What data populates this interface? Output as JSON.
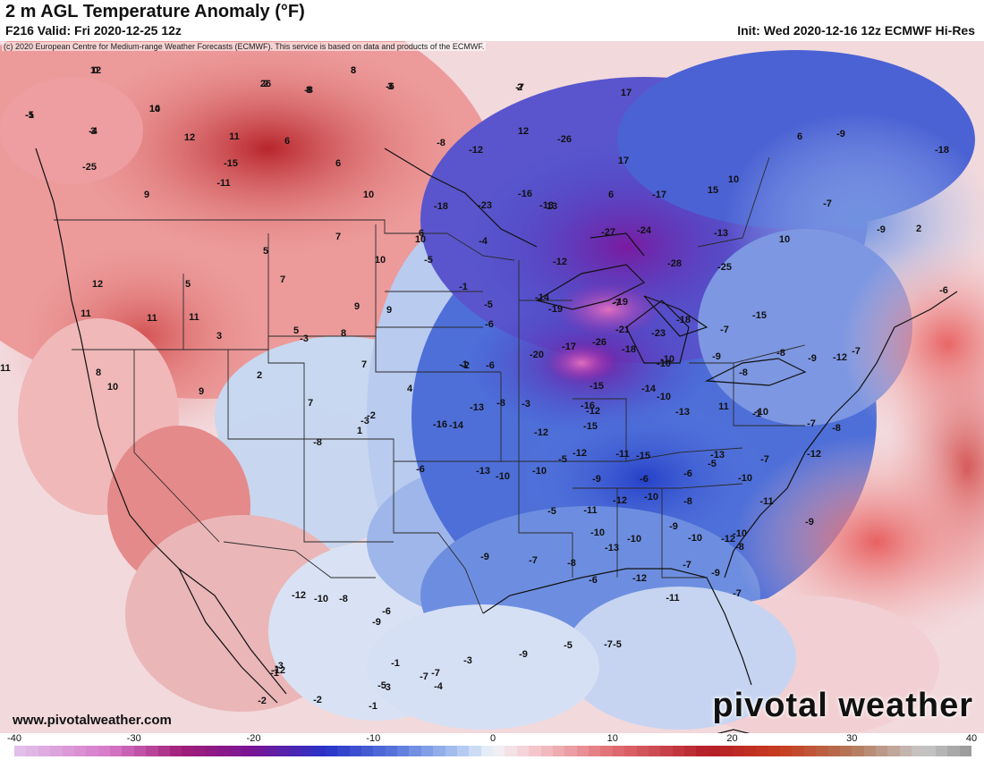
{
  "header": {
    "title": "2 m AGL Temperature Anomaly (°F)",
    "valid": "F216 Valid: Fri 2020-12-25 12z",
    "init": "Init: Wed 2020-12-16 12z ECMWF Hi-Res",
    "credit": "(c) 2020 European Centre for Medium-range Weather Forecasts (ECMWF). This service is based on data and products of the ECMWF."
  },
  "footer": {
    "site": "www.pivotalweather.com",
    "logo": "pivotal weather"
  },
  "legend": {
    "ticks": [
      "-40",
      "-30",
      "-20",
      "-10",
      "0",
      "10",
      "20",
      "30",
      "40"
    ],
    "min": -40,
    "max": 40
  },
  "map_values": [
    "12",
    "8",
    "26",
    "8",
    "3",
    "2",
    "14",
    "-1",
    "3",
    "12",
    "11",
    "6",
    "17",
    "12",
    "-26",
    "-8",
    "-16",
    "6",
    "-9",
    "-12",
    "-15",
    "6",
    "17",
    "10",
    "-18",
    "-25",
    "-11",
    "10",
    "9",
    "13",
    "15",
    "-7",
    "-18",
    "-23",
    "-13",
    "6",
    "-17",
    "-13",
    "10",
    "6",
    "10",
    "-4",
    "-24",
    "-9",
    "2",
    "-27",
    "-12",
    "-28",
    "5",
    "7",
    "10",
    "-5",
    "-25",
    "-6",
    "12",
    "5",
    "7",
    "-1",
    "-14",
    "-7",
    "-5",
    "11",
    "11",
    "11",
    "9",
    "9",
    "8",
    "-19",
    "-19",
    "3",
    "-3",
    "-21",
    "-23",
    "-18",
    "-15",
    "-6",
    "-1",
    "8",
    "10",
    "-6",
    "-17",
    "-26",
    "-10",
    "-7",
    "5",
    "11",
    "2",
    "7",
    "-20",
    "-2",
    "-8",
    "-18",
    "-10",
    "-9",
    "-8",
    "-9",
    "-12",
    "-7",
    "1",
    "4",
    "-16",
    "-15",
    "-14",
    "-10",
    "-8",
    "9",
    "7",
    "-8",
    "-15",
    "-3",
    "-13",
    "-12",
    "-13",
    "11",
    "-1",
    "-10",
    "-2",
    "-3",
    "-12",
    "-14",
    "-16",
    "-12",
    "-11",
    "-15",
    "-13",
    "-10",
    "-7",
    "-8",
    "-13",
    "-10",
    "-5",
    "-9",
    "-6",
    "-5",
    "-6",
    "-7",
    "-12",
    "-6",
    "-10",
    "-5",
    "-11",
    "-12",
    "-10",
    "-8",
    "-11",
    "-9",
    "-10",
    "-10",
    "-13",
    "-10",
    "-9",
    "-10",
    "-12",
    "-9",
    "-7",
    "-8",
    "-6",
    "-12",
    "-11",
    "-7",
    "-9",
    "-8",
    "-7",
    "-9",
    "-5",
    "-7",
    "-5",
    "-9",
    "-8",
    "-6",
    "-10",
    "-12",
    "-12",
    "-3",
    "-5",
    "-7",
    "-7",
    "-3",
    "-4",
    "-1",
    "-2",
    "-1",
    "-0",
    "-3",
    "-1",
    "-2",
    "0",
    "3",
    "2",
    "-8",
    "-6",
    "-7",
    "10",
    "-5",
    "-4"
  ]
}
